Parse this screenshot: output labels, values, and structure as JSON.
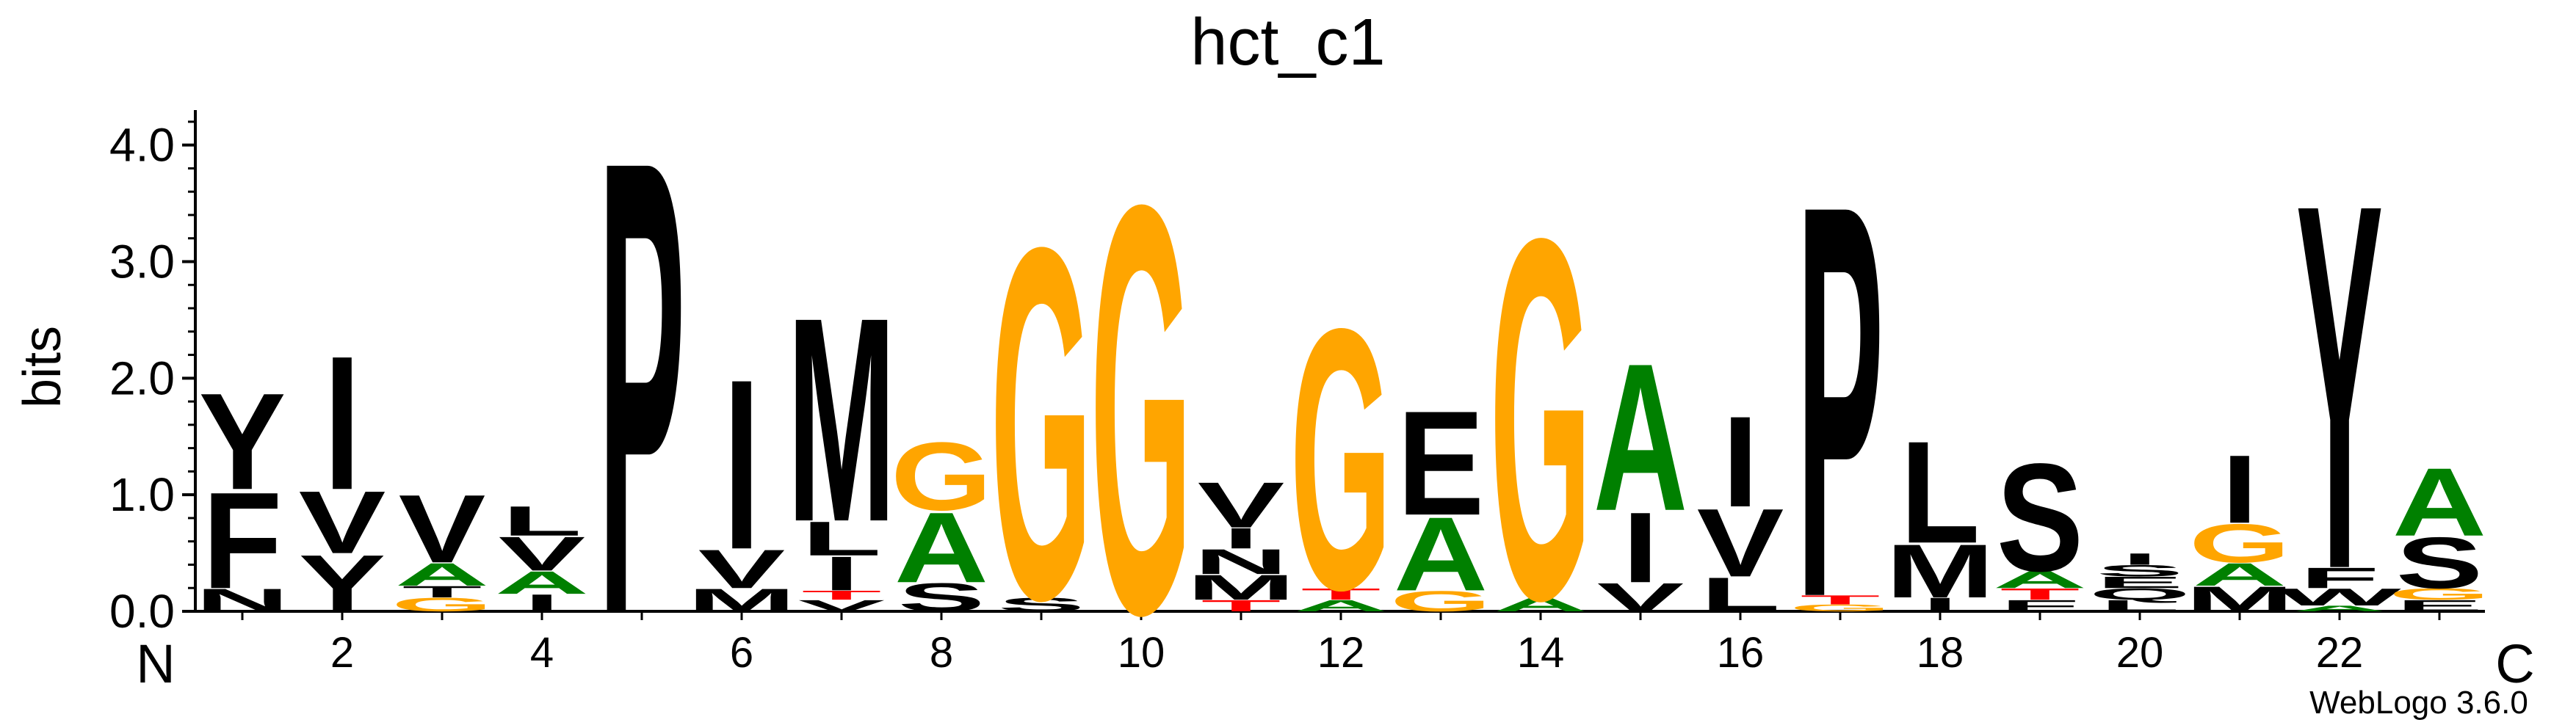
{
  "chart_data": {
    "type": "sequence-logo",
    "title": "hct_c1",
    "ylabel": "bits",
    "ylim": [
      0,
      4.3
    ],
    "yticks": [
      {
        "value": 0.0,
        "label": "0.0"
      },
      {
        "value": 1.0,
        "label": "1.0"
      },
      {
        "value": 2.0,
        "label": "2.0"
      },
      {
        "value": 3.0,
        "label": "3.0"
      },
      {
        "value": 4.0,
        "label": "4.0"
      }
    ],
    "xticks": [
      {
        "position": 2,
        "label": "2"
      },
      {
        "position": 4,
        "label": "4"
      },
      {
        "position": 6,
        "label": "6"
      },
      {
        "position": 8,
        "label": "8"
      },
      {
        "position": 10,
        "label": "10"
      },
      {
        "position": 12,
        "label": "12"
      },
      {
        "position": 14,
        "label": "14"
      },
      {
        "position": 16,
        "label": "16"
      },
      {
        "position": 18,
        "label": "18"
      },
      {
        "position": 20,
        "label": "20"
      },
      {
        "position": 22,
        "label": "22"
      }
    ],
    "n_terminus_label": "N",
    "c_terminus_label": "C",
    "positions": [
      {
        "position": 1,
        "letters": [
          {
            "letter": "N",
            "height": 0.2,
            "color": "#000000"
          },
          {
            "letter": "F",
            "height": 0.85,
            "color": "#000000"
          },
          {
            "letter": "Y",
            "height": 0.85,
            "color": "#000000"
          }
        ]
      },
      {
        "position": 2,
        "letters": [
          {
            "letter": "Y",
            "height": 0.5,
            "color": "#000000"
          },
          {
            "letter": "V",
            "height": 0.55,
            "color": "#000000"
          },
          {
            "letter": "I",
            "height": 1.18,
            "color": "#000000"
          }
        ]
      },
      {
        "position": 3,
        "letters": [
          {
            "letter": "G",
            "height": 0.12,
            "color": "#ffa500"
          },
          {
            "letter": "T",
            "height": 0.1,
            "color": "#000000"
          },
          {
            "letter": "A",
            "height": 0.2,
            "color": "#008000"
          },
          {
            "letter": "V",
            "height": 0.6,
            "color": "#000000"
          }
        ]
      },
      {
        "position": 4,
        "letters": [
          {
            "letter": "I",
            "height": 0.15,
            "color": "#000000"
          },
          {
            "letter": "A",
            "height": 0.2,
            "color": "#008000"
          },
          {
            "letter": "V",
            "height": 0.3,
            "color": "#000000"
          },
          {
            "letter": "L",
            "height": 0.26,
            "color": "#000000"
          }
        ]
      },
      {
        "position": 5,
        "letters": [
          {
            "letter": "P",
            "height": 4.0,
            "color": "#000000"
          }
        ]
      },
      {
        "position": 6,
        "letters": [
          {
            "letter": "M",
            "height": 0.2,
            "color": "#000000"
          },
          {
            "letter": "V",
            "height": 0.34,
            "color": "#000000"
          },
          {
            "letter": "I",
            "height": 1.5,
            "color": "#000000"
          }
        ]
      },
      {
        "position": 7,
        "letters": [
          {
            "letter": "V",
            "height": 0.1,
            "color": "#000000"
          },
          {
            "letter": "T",
            "height": 0.08,
            "color": "#ff0000"
          },
          {
            "letter": "I",
            "height": 0.3,
            "color": "#000000"
          },
          {
            "letter": "L",
            "height": 0.3,
            "color": "#000000"
          },
          {
            "letter": "M",
            "height": 1.8,
            "color": "#000000"
          }
        ]
      },
      {
        "position": 8,
        "letters": [
          {
            "letter": "S",
            "height": 0.25,
            "color": "#000000"
          },
          {
            "letter": "A",
            "height": 0.62,
            "color": "#008000"
          },
          {
            "letter": "G",
            "height": 0.6,
            "color": "#ffa500"
          }
        ]
      },
      {
        "position": 9,
        "letters": [
          {
            "letter": "S",
            "height": 0.12,
            "color": "#000000"
          },
          {
            "letter": "G",
            "height": 3.1,
            "color": "#ffa500"
          }
        ]
      },
      {
        "position": 10,
        "letters": [
          {
            "letter": "G",
            "height": 3.6,
            "color": "#ffa500"
          }
        ]
      },
      {
        "position": 11,
        "letters": [
          {
            "letter": "T",
            "height": 0.1,
            "color": "#ff0000"
          },
          {
            "letter": "M",
            "height": 0.22,
            "color": "#000000"
          },
          {
            "letter": "N",
            "height": 0.22,
            "color": "#000000"
          },
          {
            "letter": "I",
            "height": 0.18,
            "color": "#000000"
          },
          {
            "letter": "V",
            "height": 0.4,
            "color": "#000000"
          }
        ]
      },
      {
        "position": 12,
        "letters": [
          {
            "letter": "A",
            "height": 0.1,
            "color": "#008000"
          },
          {
            "letter": "T",
            "height": 0.1,
            "color": "#ff0000"
          },
          {
            "letter": "G",
            "height": 2.3,
            "color": "#ffa500"
          }
        ]
      },
      {
        "position": 13,
        "letters": [
          {
            "letter": "G",
            "height": 0.18,
            "color": "#ffa500"
          },
          {
            "letter": "A",
            "height": 0.65,
            "color": "#008000"
          },
          {
            "letter": "E",
            "height": 0.92,
            "color": "#000000"
          }
        ]
      },
      {
        "position": 14,
        "letters": [
          {
            "letter": "A",
            "height": 0.12,
            "color": "#008000"
          },
          {
            "letter": "G",
            "height": 3.18,
            "color": "#ffa500"
          }
        ]
      },
      {
        "position": 15,
        "letters": [
          {
            "letter": "V",
            "height": 0.25,
            "color": "#000000"
          },
          {
            "letter": "I",
            "height": 0.62,
            "color": "#000000"
          },
          {
            "letter": "A",
            "height": 1.3,
            "color": "#008000"
          }
        ]
      },
      {
        "position": 16,
        "letters": [
          {
            "letter": "L",
            "height": 0.3,
            "color": "#000000"
          },
          {
            "letter": "V",
            "height": 0.6,
            "color": "#000000"
          },
          {
            "letter": "I",
            "height": 0.8,
            "color": "#000000"
          }
        ]
      },
      {
        "position": 17,
        "letters": [
          {
            "letter": "G",
            "height": 0.06,
            "color": "#ffa500"
          },
          {
            "letter": "T",
            "height": 0.08,
            "color": "#ff0000"
          },
          {
            "letter": "P",
            "height": 3.46,
            "color": "#000000"
          }
        ]
      },
      {
        "position": 18,
        "letters": [
          {
            "letter": "I",
            "height": 0.12,
            "color": "#000000"
          },
          {
            "letter": "M",
            "height": 0.47,
            "color": "#000000"
          },
          {
            "letter": "L",
            "height": 0.9,
            "color": "#000000"
          }
        ]
      },
      {
        "position": 19,
        "letters": [
          {
            "letter": "F",
            "height": 0.1,
            "color": "#000000"
          },
          {
            "letter": "T",
            "height": 0.1,
            "color": "#ff0000"
          },
          {
            "letter": "A",
            "height": 0.15,
            "color": "#008000"
          },
          {
            "letter": "S",
            "height": 0.95,
            "color": "#000000"
          }
        ]
      },
      {
        "position": 20,
        "letters": [
          {
            "letter": "L",
            "height": 0.1,
            "color": "#000000"
          },
          {
            "letter": "Q",
            "height": 0.1,
            "color": "#000000"
          },
          {
            "letter": "E",
            "height": 0.1,
            "color": "#000000"
          },
          {
            "letter": "S",
            "height": 0.1,
            "color": "#000000"
          },
          {
            "letter": "I",
            "height": 0.1,
            "color": "#000000"
          }
        ]
      },
      {
        "position": 21,
        "letters": [
          {
            "letter": "M",
            "height": 0.22,
            "color": "#000000"
          },
          {
            "letter": "A",
            "height": 0.2,
            "color": "#008000"
          },
          {
            "letter": "G",
            "height": 0.34,
            "color": "#ffa500"
          },
          {
            "letter": "I",
            "height": 0.6,
            "color": "#000000"
          }
        ]
      },
      {
        "position": 22,
        "letters": [
          {
            "letter": "A",
            "height": 0.05,
            "color": "#008000"
          },
          {
            "letter": "W",
            "height": 0.15,
            "color": "#000000"
          },
          {
            "letter": "F",
            "height": 0.18,
            "color": "#000000"
          },
          {
            "letter": "Y",
            "height": 3.22,
            "color": "#000000"
          }
        ]
      },
      {
        "position": 23,
        "letters": [
          {
            "letter": "E",
            "height": 0.1,
            "color": "#000000"
          },
          {
            "letter": "G",
            "height": 0.1,
            "color": "#ffa500"
          },
          {
            "letter": "S",
            "height": 0.45,
            "color": "#000000"
          },
          {
            "letter": "A",
            "height": 0.6,
            "color": "#008000"
          }
        ]
      }
    ],
    "footer": "WebLogo 3.6.0"
  }
}
